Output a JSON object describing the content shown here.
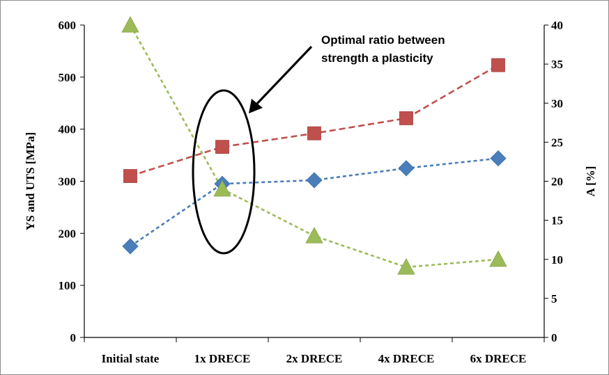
{
  "chart_data": {
    "type": "line",
    "title": "",
    "categories": [
      "Initial state",
      "1x DRECE",
      "2x DRECE",
      "4x DRECE",
      "6x DRECE"
    ],
    "ylabel": "YS and UTS [MPa]",
    "y2label": "A [%]",
    "ylim": [
      0,
      600
    ],
    "y2lim": [
      0,
      40
    ],
    "yticks": [
      0,
      100,
      200,
      300,
      400,
      500,
      600
    ],
    "y2ticks": [
      0,
      5,
      10,
      15,
      20,
      25,
      30,
      35,
      40
    ],
    "grid": false,
    "legend": "none",
    "series": [
      {
        "axis": "left",
        "marker": "diamond",
        "color": "#4a7ebb",
        "values": [
          175,
          295,
          302,
          325,
          344
        ]
      },
      {
        "axis": "left",
        "marker": "square",
        "color": "#c0504d",
        "values": [
          310,
          366,
          392,
          421,
          523
        ]
      },
      {
        "axis": "right",
        "marker": "triangle",
        "color": "#9bbb59",
        "values": [
          40,
          19,
          13,
          9,
          10
        ]
      }
    ],
    "annotations": [
      {
        "text_lines": [
          "Optimal ratio between",
          "strength a plasticity"
        ],
        "target_category": "1x DRECE"
      }
    ]
  }
}
